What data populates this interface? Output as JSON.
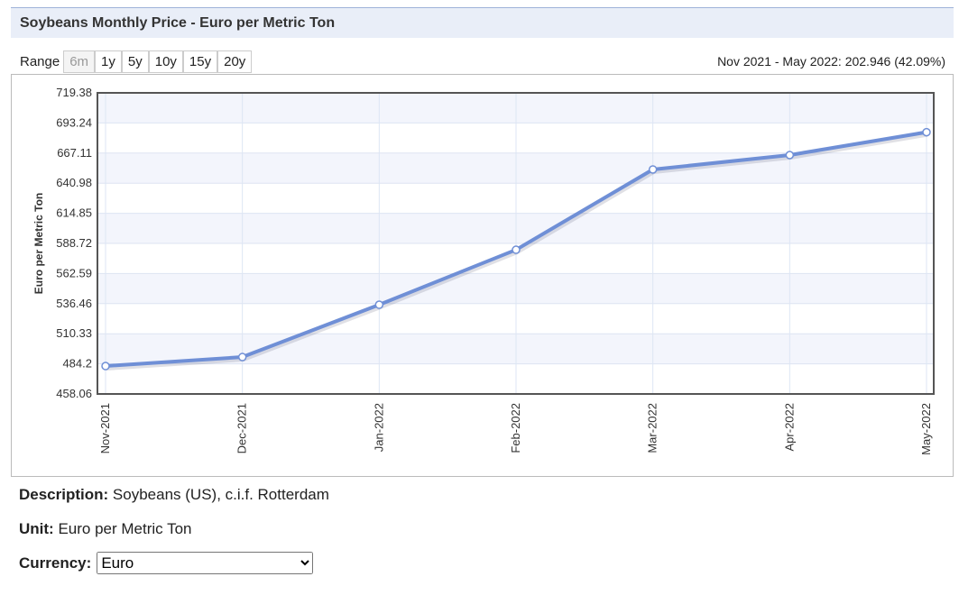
{
  "header": {
    "title": "Soybeans Monthly Price - Euro per Metric Ton"
  },
  "range": {
    "label": "Range",
    "buttons": [
      "6m",
      "1y",
      "5y",
      "10y",
      "15y",
      "20y"
    ],
    "summary": "Nov 2021 - May 2022: 202.946 (42.09%)"
  },
  "chart_data": {
    "type": "line",
    "ylabel": "Euro per Metric Ton",
    "categories": [
      "Nov-2021",
      "Dec-2021",
      "Jan-2022",
      "Feb-2022",
      "Mar-2022",
      "Apr-2022",
      "May-2022"
    ],
    "series": [
      {
        "name": "Soybeans",
        "color": "#6f8fd6",
        "values": [
          482.3,
          490.1,
          535.5,
          583.2,
          652.9,
          665.4,
          685.25
        ]
      }
    ],
    "ylim": [
      458.06,
      719.38
    ],
    "yticks": [
      458.06,
      484.2,
      510.33,
      536.46,
      562.59,
      588.72,
      614.85,
      640.98,
      667.11,
      693.24,
      719.38
    ],
    "grid": true
  },
  "details": {
    "description_label": "Description:",
    "description": "Soybeans (US), c.i.f. Rotterdam",
    "unit_label": "Unit:",
    "unit": "Euro per Metric Ton",
    "currency_label": "Currency:",
    "currency": "Euro"
  }
}
